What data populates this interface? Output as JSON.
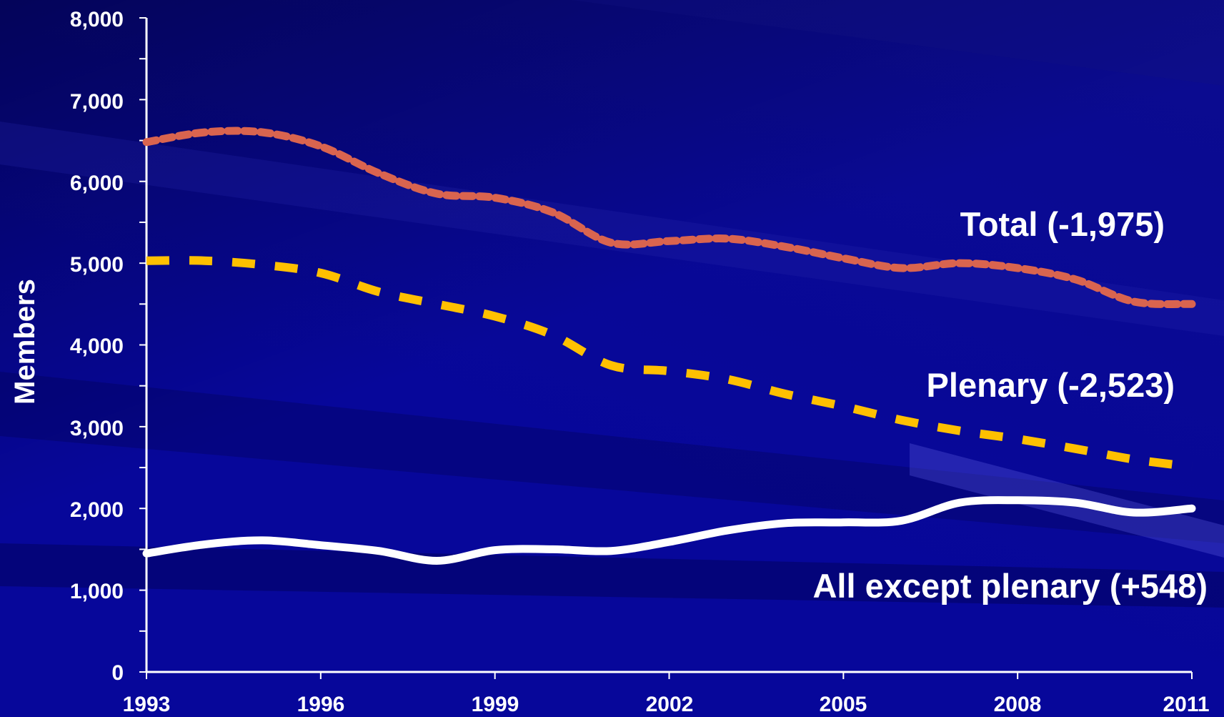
{
  "chart_data": {
    "type": "line",
    "title": "",
    "xlabel": "",
    "ylabel": "Members",
    "xlim": [
      1993,
      2011
    ],
    "ylim": [
      0,
      8000
    ],
    "x_ticks": [
      "1993",
      "1996",
      "1999",
      "2002",
      "2005",
      "2008",
      "2011"
    ],
    "y_ticks": [
      "0",
      "1,000",
      "2,000",
      "3,000",
      "4,000",
      "5,000",
      "6,000",
      "7,000",
      "8,000"
    ],
    "grid": false,
    "x": [
      1993,
      1994,
      1995,
      1996,
      1997,
      1998,
      1999,
      2000,
      2001,
      2002,
      2003,
      2004,
      2005,
      2006,
      2007,
      2008,
      2009,
      2010,
      2011
    ],
    "series": [
      {
        "name": "Total (-1,975)",
        "color": "#d9644f",
        "style": "dotted",
        "values": [
          6480,
          6600,
          6600,
          6430,
          6100,
          5850,
          5800,
          5620,
          5250,
          5270,
          5300,
          5200,
          5060,
          4940,
          5000,
          4940,
          4800,
          4530,
          4500
        ]
      },
      {
        "name": "Plenary (-2,523)",
        "color": "#ffc000",
        "style": "dashed",
        "values": [
          5030,
          5030,
          4980,
          4880,
          4650,
          4500,
          4350,
          4120,
          3750,
          3680,
          3580,
          3400,
          3250,
          3080,
          2950,
          2850,
          2730,
          2600,
          2510
        ]
      },
      {
        "name": "All except plenary (+548)",
        "color": "#ffffff",
        "style": "solid",
        "values": [
          1450,
          1560,
          1610,
          1550,
          1480,
          1360,
          1490,
          1500,
          1480,
          1590,
          1730,
          1820,
          1830,
          1850,
          2070,
          2100,
          2070,
          1950,
          2000
        ]
      }
    ]
  }
}
